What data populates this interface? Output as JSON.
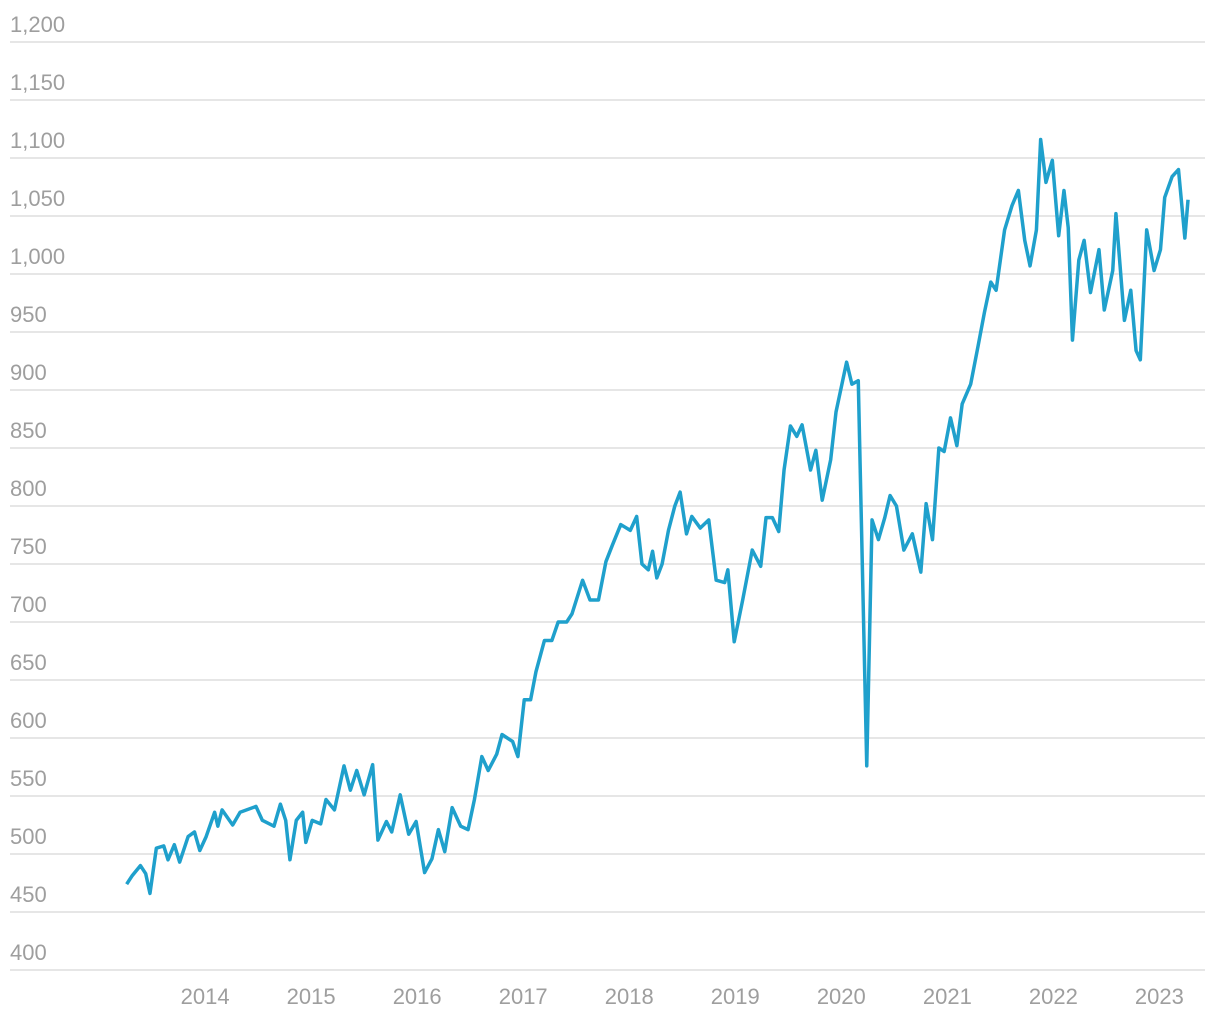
{
  "chart_data": {
    "type": "line",
    "x": [
      2013.26,
      2013.31,
      2013.39,
      2013.44,
      2013.48,
      2013.54,
      2013.61,
      2013.65,
      2013.71,
      2013.76,
      2013.84,
      2013.9,
      2013.95,
      2014.01,
      2014.09,
      2014.12,
      2014.16,
      2014.26,
      2014.33,
      2014.48,
      2014.54,
      2014.65,
      2014.71,
      2014.76,
      2014.8,
      2014.86,
      2014.92,
      2014.95,
      2015.01,
      2015.09,
      2015.14,
      2015.22,
      2015.31,
      2015.37,
      2015.43,
      2015.5,
      2015.58,
      2015.63,
      2015.71,
      2015.76,
      2015.84,
      2015.92,
      2015.99,
      2016.07,
      2016.14,
      2016.2,
      2016.26,
      2016.33,
      2016.41,
      2016.48,
      2016.54,
      2016.61,
      2016.67,
      2016.75,
      2016.8,
      2016.9,
      2016.95,
      2017.01,
      2017.07,
      2017.12,
      2017.2,
      2017.27,
      2017.33,
      2017.41,
      2017.46,
      2017.56,
      2017.63,
      2017.71,
      2017.78,
      2017.84,
      2017.92,
      2018.01,
      2018.07,
      2018.12,
      2018.18,
      2018.22,
      2018.26,
      2018.31,
      2018.37,
      2018.43,
      2018.48,
      2018.54,
      2018.59,
      2018.67,
      2018.75,
      2018.82,
      2018.9,
      2018.93,
      2018.99,
      2019.07,
      2019.16,
      2019.24,
      2019.29,
      2019.35,
      2019.41,
      2019.46,
      2019.52,
      2019.58,
      2019.63,
      2019.71,
      2019.76,
      2019.82,
      2019.9,
      2019.95,
      2020.05,
      2020.1,
      2020.16,
      2020.24,
      2020.29,
      2020.35,
      2020.41,
      2020.46,
      2020.52,
      2020.59,
      2020.67,
      2020.75,
      2020.8,
      2020.86,
      2020.92,
      2020.97,
      2021.03,
      2021.09,
      2021.14,
      2021.22,
      2021.29,
      2021.35,
      2021.41,
      2021.46,
      2021.54,
      2021.61,
      2021.67,
      2021.73,
      2021.78,
      2021.84,
      2021.88,
      2021.93,
      2021.99,
      2022.05,
      2022.1,
      2022.14,
      2022.18,
      2022.24,
      2022.29,
      2022.35,
      2022.43,
      2022.48,
      2022.56,
      2022.59,
      2022.67,
      2022.73,
      2022.78,
      2022.82,
      2022.88,
      2022.95,
      2023.01,
      2023.05,
      2023.12,
      2023.18,
      2023.24,
      2023.27
    ],
    "series": [
      {
        "color": "#1fa0cc",
        "values": [
          474,
          481,
          490,
          483,
          466,
          505,
          507,
          495,
          508,
          493,
          515,
          519,
          503,
          515,
          536,
          524,
          538,
          525,
          536,
          541,
          529,
          524,
          543,
          529,
          495,
          529,
          536,
          510,
          529,
          526,
          547,
          538,
          576,
          555,
          572,
          551,
          577,
          512,
          528,
          519,
          551,
          517,
          528,
          484,
          496,
          521,
          502,
          540,
          524,
          521,
          547,
          584,
          572,
          586,
          603,
          597,
          584,
          633,
          633,
          657,
          684,
          684,
          700,
          700,
          707,
          736,
          719,
          719,
          752,
          766,
          784,
          779,
          791,
          750,
          745,
          761,
          738,
          750,
          779,
          800,
          812,
          776,
          791,
          781,
          788,
          736,
          734,
          745,
          683,
          719,
          762,
          748,
          790,
          790,
          778,
          831,
          869,
          860,
          870,
          831,
          848,
          805,
          840,
          881,
          924,
          905,
          908,
          576,
          788,
          771,
          790,
          809,
          800,
          762,
          776,
          743,
          802,
          771,
          850,
          847,
          876,
          852,
          888,
          905,
          938,
          967,
          993,
          986,
          1038,
          1059,
          1072,
          1029,
          1007,
          1038,
          1116,
          1079,
          1098,
          1033,
          1072,
          1040,
          943,
          1012,
          1029,
          984,
          1021,
          969,
          1003,
          1052,
          960,
          986,
          934,
          926,
          1038,
          1003,
          1021,
          1066,
          1084,
          1090,
          1031,
          1064
        ]
      }
    ],
    "xlim": [
      2012.16,
      2023.43
    ],
    "xticks": [
      2014,
      2015,
      2016,
      2017,
      2018,
      2019,
      2020,
      2021,
      2022,
      2023
    ],
    "ylim": [
      400,
      1200
    ],
    "yticks": [
      400,
      450,
      500,
      550,
      600,
      650,
      700,
      750,
      800,
      850,
      900,
      950,
      {
        "value": 1000,
        "label": "1,000"
      },
      {
        "value": 1050,
        "label": "1,050"
      },
      {
        "value": 1100,
        "label": "1,100"
      },
      {
        "value": 1150,
        "label": "1,150"
      },
      {
        "value": 1200,
        "label": "1,200"
      }
    ],
    "grid": true
  }
}
